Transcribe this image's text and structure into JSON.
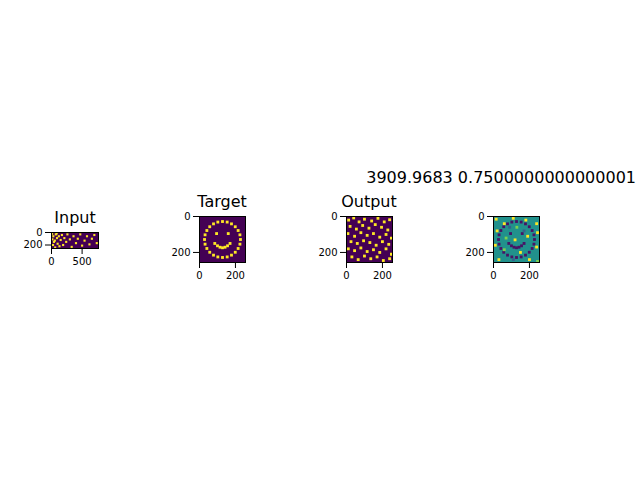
{
  "chart_data": [
    {
      "type": "heatmap",
      "title": "Input",
      "xlim": [
        0,
        768
      ],
      "ylim": [
        256,
        0
      ],
      "xticks": [
        0,
        500
      ],
      "yticks": [
        0,
        200
      ],
      "vlim": [
        0,
        1
      ],
      "background": 0,
      "cells": [
        [
          10,
          20,
          1
        ],
        [
          30,
          60,
          1
        ],
        [
          15,
          110,
          1
        ],
        [
          40,
          150,
          1
        ],
        [
          25,
          200,
          1
        ],
        [
          60,
          240,
          1
        ],
        [
          70,
          30,
          1
        ],
        [
          90,
          90,
          1
        ],
        [
          55,
          130,
          1
        ],
        [
          100,
          180,
          1
        ],
        [
          120,
          60,
          1
        ],
        [
          130,
          220,
          1
        ],
        [
          85,
          15,
          1
        ],
        [
          150,
          120,
          1
        ],
        [
          170,
          40,
          1
        ],
        [
          190,
          200,
          1
        ],
        [
          210,
          90,
          1
        ],
        [
          240,
          150,
          1
        ],
        [
          260,
          30,
          1
        ],
        [
          300,
          110,
          1
        ],
        [
          330,
          230,
          1
        ],
        [
          360,
          60,
          1
        ],
        [
          400,
          170,
          1
        ],
        [
          430,
          100,
          1
        ],
        [
          470,
          30,
          1
        ],
        [
          500,
          210,
          1
        ],
        [
          540,
          130,
          1
        ],
        [
          580,
          60,
          1
        ],
        [
          620,
          190,
          1
        ],
        [
          660,
          100,
          1
        ],
        [
          700,
          40,
          1
        ],
        [
          740,
          170,
          1
        ]
      ]
    },
    {
      "type": "heatmap",
      "title": "Target",
      "xlim": [
        0,
        256
      ],
      "ylim": [
        256,
        0
      ],
      "xticks": [
        0,
        200
      ],
      "yticks": [
        0,
        200
      ],
      "vlim": [
        0,
        1
      ],
      "background": 0,
      "cells": [
        [
          228,
          128,
          1
        ],
        [
          225,
          154,
          1
        ],
        [
          215,
          178,
          1
        ],
        [
          199,
          199,
          1
        ],
        [
          178,
          215,
          1
        ],
        [
          154,
          225,
          1
        ],
        [
          128,
          228,
          1
        ],
        [
          102,
          225,
          1
        ],
        [
          78,
          215,
          1
        ],
        [
          57,
          199,
          1
        ],
        [
          41,
          178,
          1
        ],
        [
          31,
          154,
          1
        ],
        [
          28,
          128,
          1
        ],
        [
          31,
          102,
          1
        ],
        [
          41,
          78,
          1
        ],
        [
          57,
          57,
          1
        ],
        [
          78,
          41,
          1
        ],
        [
          102,
          31,
          1
        ],
        [
          128,
          28,
          1
        ],
        [
          154,
          31,
          1
        ],
        [
          178,
          41,
          1
        ],
        [
          199,
          57,
          1
        ],
        [
          215,
          78,
          1
        ],
        [
          225,
          102,
          1
        ],
        [
          95,
          95,
          1
        ],
        [
          160,
          95,
          1
        ],
        [
          85,
          150,
          1
        ],
        [
          100,
          163,
          1
        ],
        [
          114,
          171,
          1
        ],
        [
          128,
          174,
          1
        ],
        [
          142,
          171,
          1
        ],
        [
          156,
          163,
          1
        ],
        [
          170,
          150,
          1
        ]
      ]
    },
    {
      "type": "heatmap",
      "title": "Output",
      "xlim": [
        0,
        256
      ],
      "ylim": [
        256,
        0
      ],
      "xticks": [
        0,
        200
      ],
      "yticks": [
        0,
        200
      ],
      "vlim": [
        0,
        1
      ],
      "background": 0,
      "cells": [
        [
          12,
          20,
          1
        ],
        [
          40,
          8,
          1
        ],
        [
          70,
          30,
          1
        ],
        [
          100,
          15,
          1
        ],
        [
          140,
          25,
          1
        ],
        [
          175,
          10,
          1
        ],
        [
          210,
          30,
          1
        ],
        [
          240,
          18,
          1
        ],
        [
          20,
          55,
          1
        ],
        [
          55,
          70,
          1
        ],
        [
          90,
          50,
          1
        ],
        [
          125,
          65,
          1
        ],
        [
          160,
          45,
          1
        ],
        [
          195,
          60,
          1
        ],
        [
          230,
          75,
          1
        ],
        [
          8,
          95,
          1
        ],
        [
          45,
          110,
          1
        ],
        [
          80,
          90,
          1
        ],
        [
          115,
          105,
          1
        ],
        [
          150,
          95,
          1
        ],
        [
          185,
          115,
          1
        ],
        [
          220,
          100,
          1
        ],
        [
          250,
          120,
          1
        ],
        [
          25,
          140,
          1
        ],
        [
          60,
          150,
          1
        ],
        [
          95,
          135,
          1
        ],
        [
          130,
          145,
          1
        ],
        [
          165,
          160,
          1
        ],
        [
          200,
          140,
          1
        ],
        [
          235,
          155,
          1
        ],
        [
          10,
          180,
          1
        ],
        [
          45,
          190,
          1
        ],
        [
          80,
          175,
          1
        ],
        [
          115,
          195,
          1
        ],
        [
          150,
          185,
          1
        ],
        [
          185,
          200,
          1
        ],
        [
          220,
          180,
          1
        ],
        [
          250,
          210,
          1
        ],
        [
          30,
          225,
          1
        ],
        [
          65,
          240,
          1
        ],
        [
          100,
          220,
          1
        ],
        [
          135,
          235,
          1
        ],
        [
          170,
          225,
          1
        ],
        [
          205,
          245,
          1
        ],
        [
          240,
          235,
          1
        ]
      ]
    },
    {
      "type": "heatmap",
      "title": "3909.9683 0.7500000000000001",
      "xlim": [
        0,
        256
      ],
      "ylim": [
        256,
        0
      ],
      "xticks": [
        0,
        200
      ],
      "yticks": [
        0,
        200
      ],
      "vlim": [
        0,
        1
      ],
      "background": 0.5,
      "cells": [
        [
          228,
          128,
          0.05
        ],
        [
          225,
          154,
          0.05
        ],
        [
          215,
          178,
          0.05
        ],
        [
          199,
          199,
          0.05
        ],
        [
          178,
          215,
          0.05
        ],
        [
          154,
          225,
          0.05
        ],
        [
          128,
          228,
          0.05
        ],
        [
          102,
          225,
          0.05
        ],
        [
          78,
          215,
          0.05
        ],
        [
          57,
          199,
          0.05
        ],
        [
          41,
          178,
          0.05
        ],
        [
          31,
          154,
          0.05
        ],
        [
          28,
          128,
          0.05
        ],
        [
          31,
          102,
          0.05
        ],
        [
          41,
          78,
          0.05
        ],
        [
          57,
          57,
          0.05
        ],
        [
          78,
          41,
          0.05
        ],
        [
          102,
          31,
          0.05
        ],
        [
          128,
          28,
          0.05
        ],
        [
          154,
          31,
          0.05
        ],
        [
          178,
          41,
          0.05
        ],
        [
          199,
          57,
          0.05
        ],
        [
          215,
          78,
          0.05
        ],
        [
          225,
          102,
          0.05
        ],
        [
          95,
          95,
          0.05
        ],
        [
          160,
          95,
          0.05
        ],
        [
          85,
          150,
          0.05
        ],
        [
          100,
          163,
          0.05
        ],
        [
          114,
          171,
          0.05
        ],
        [
          128,
          174,
          0.05
        ],
        [
          142,
          171,
          0.05
        ],
        [
          156,
          163,
          0.05
        ],
        [
          170,
          150,
          0.05
        ],
        [
          15,
          15,
          1
        ],
        [
          60,
          40,
          1
        ],
        [
          110,
          10,
          1
        ],
        [
          180,
          20,
          1
        ],
        [
          240,
          40,
          1
        ],
        [
          20,
          80,
          1
        ],
        [
          130,
          60,
          0.8
        ],
        [
          245,
          90,
          1
        ],
        [
          70,
          120,
          0.8
        ],
        [
          190,
          110,
          1
        ],
        [
          10,
          160,
          1
        ],
        [
          120,
          130,
          1
        ],
        [
          240,
          170,
          1
        ],
        [
          60,
          185,
          0.8
        ],
        [
          150,
          200,
          1
        ],
        [
          30,
          240,
          1
        ],
        [
          200,
          240,
          1
        ],
        [
          245,
          250,
          0.8
        ],
        [
          90,
          60,
          0.3
        ],
        [
          170,
          80,
          0.3
        ],
        [
          110,
          240,
          0.3
        ]
      ]
    }
  ]
}
